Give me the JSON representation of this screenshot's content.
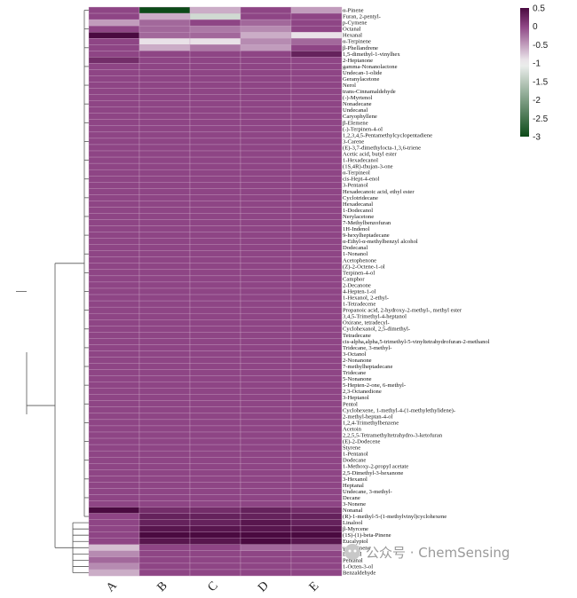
{
  "watermark": "公众号 · ChemSensing",
  "colors": {
    "high": "#4a0a40",
    "mid": "#8e4585",
    "neutral": "#f3f3f3",
    "low": "#0c4a18",
    "grid": "#c9a4c4",
    "tree": "#555555"
  },
  "chart_data": {
    "type": "heatmap",
    "title": "",
    "xlabel": "",
    "ylabel": "",
    "columns": [
      "A",
      "B",
      "C",
      "D",
      "E"
    ],
    "colorbar": {
      "min": -3,
      "max": 0.5,
      "ticks": [
        "0.5",
        "0",
        "-0.5",
        "-1",
        "-1.5",
        "-2",
        "-2.5",
        "-3"
      ],
      "tick_values": [
        0.5,
        0,
        -0.5,
        -1,
        -1.5,
        -2,
        -2.5,
        -3
      ]
    },
    "rows": [
      "α-Pinene",
      "Furan, 2-pentyl-",
      "p-Cymene",
      "Octanal",
      "Hexanal",
      "α-Terpinene",
      "β-Phellandrene",
      "1,5-dimethyl-1-vinylhex",
      "2-Heptanone",
      "gamma-Nonanolactone",
      "Undecan-1-olide",
      "Geranylacetone",
      "Nerol",
      "trans-Cinnamaldehyde",
      "(-)-Myrtenol",
      "Nonadecane",
      "Undecanal",
      "Caryophyllene",
      "β-Elemene",
      "(-)-Terpinen-4-ol",
      "1,2,3,4,5-Pentamethylcyclopentadiene",
      "3-Carene",
      "(E)-3,7-dimethylocta-1,3,6-triene",
      "Acetic acid, butyl ester",
      "1-Hexadecanol",
      "(1S,4R)-thujan-3-one",
      "α-Terpineol",
      "cis-Hept-4-enol",
      "3-Pentanol",
      "Hexadecanoic acid, ethyl ester",
      "Cyclotridecane",
      "Hexadecanal",
      "1-Dodecanol",
      "Nerylacetone",
      "7-Methylbenzofuran",
      "1H-Indenol",
      "9-hexylheptadecane",
      "α-Ethyl-α-methylbenzyl alcohol",
      "Dodecanal",
      "1-Nonanol",
      "Acetophenone",
      "(Z)-2-Octene-1-ol",
      "Terpinen-4-ol",
      "Camphor",
      "2-Decanone",
      "4-Hepten-1-ol",
      "1-Hexanol, 2-ethyl-",
      "1-Tetradecene",
      "Propanoic acid, 2-hydroxy-2-methyl-, methyl ester",
      "3,4,5-Trimethyl-4-heptanol",
      "Oxirane, tetradecyl-",
      "Cyclohexanol, 2,5-dimethyl-",
      "Tetradecane",
      "cis-alpha,alpha,5-trimethyl-5-vinyltetrahydrofuran-2-methanol",
      "Tridecane, 3-methyl-",
      "3-Octanol",
      "2-Nonanone",
      "7-methylheptadecane",
      "Tridecane",
      "5-Nonanone",
      "5-Hepten-2-one, 6-methyl-",
      "2,3-Octanedione",
      "3-Heptanol",
      "Pentol",
      "Cyclohexene, 1-methyl-4-(1-methylethylidene)-",
      "2-methyl-heptan-4-ol",
      "1,2,4-Trimethylbenzene",
      "Acetoin",
      "2,2,5,5-Tetramethyltetrahydro-3-ketofuran",
      "(E)-2-Dodecene",
      "Styrene",
      "1-Pentanol",
      "Dodecane",
      "1-Methoxy-2-propyl acetate",
      "2,5-Dimethyl-3-hexanone",
      "3-Hexanol",
      "Heptanal",
      "Undecane, 3-methyl-",
      "Decane",
      "3-Nonene",
      "Nonanal",
      "(R)-1-methyl-5-(1-methylvinyl)cyclohexene",
      "Linalool",
      "β-Myrcene",
      "(1S)-(1)-beta-Pinene",
      "Eucalyptol",
      "γ-Terpinene",
      "Decanal",
      "Pentanal",
      "1-Octen-3-ol",
      "Benzaldehyde"
    ],
    "values_note": "",
    "special_rows": {
      "α-Pinene": [
        0.0,
        -3.0,
        -0.6,
        0.0,
        -0.5
      ],
      "Furan, 2-pentyl-": [
        0.0,
        -0.6,
        -1.3,
        0.0,
        0.0
      ],
      "p-Cymene": [
        -0.5,
        -0.2,
        0.0,
        -0.2,
        0.0
      ],
      "Octanal": [
        0.0,
        -0.2,
        -0.3,
        -0.4,
        0.0
      ],
      "Hexanal": [
        0.5,
        -0.2,
        -0.2,
        -0.6,
        -0.9
      ],
      "α-Terpinene": [
        0.0,
        -0.9,
        -0.9,
        -0.4,
        -0.2
      ],
      "β-Phellandrene": [
        0.0,
        -0.6,
        -0.3,
        -0.5,
        0.0
      ],
      "1,5-dimethyl-1-vinylhex": [
        0.0,
        0.0,
        0.0,
        0.0,
        0.3
      ],
      "2-Heptanone": [
        0.2,
        0.0,
        0.0,
        0.0,
        0.0
      ],
      "Nonanal": [
        0.5,
        0.2,
        0.2,
        0.3,
        0.2
      ],
      "(R)-1-methyl-5-(1-methylvinyl)cyclohexene": [
        0.0,
        0.3,
        0.3,
        0.3,
        0.3
      ],
      "Linalool": [
        0.0,
        0.3,
        0.3,
        0.4,
        0.3
      ],
      "β-Myrcene": [
        0.0,
        0.4,
        0.4,
        0.4,
        0.4
      ],
      "(1S)-(1)-beta-Pinene": [
        0.0,
        0.5,
        0.5,
        0.5,
        0.5
      ],
      "Eucalyptol": [
        0.0,
        0.4,
        0.4,
        0.5,
        0.4
      ],
      "γ-Terpinene": [
        -0.7,
        0.0,
        0.0,
        -0.2,
        -0.2
      ],
      "Decanal": [
        -0.4,
        0.0,
        0.0,
        0.0,
        0.0
      ],
      "Pentanal": [
        -0.2,
        0.0,
        0.0,
        0.0,
        0.0
      ],
      "1-Octen-3-ol": [
        -0.4,
        0.0,
        0.0,
        0.0,
        0.0
      ],
      "Benzaldehyde": [
        -0.6,
        0.0,
        0.0,
        0.0,
        0.0
      ]
    },
    "default_value": 0.0
  }
}
